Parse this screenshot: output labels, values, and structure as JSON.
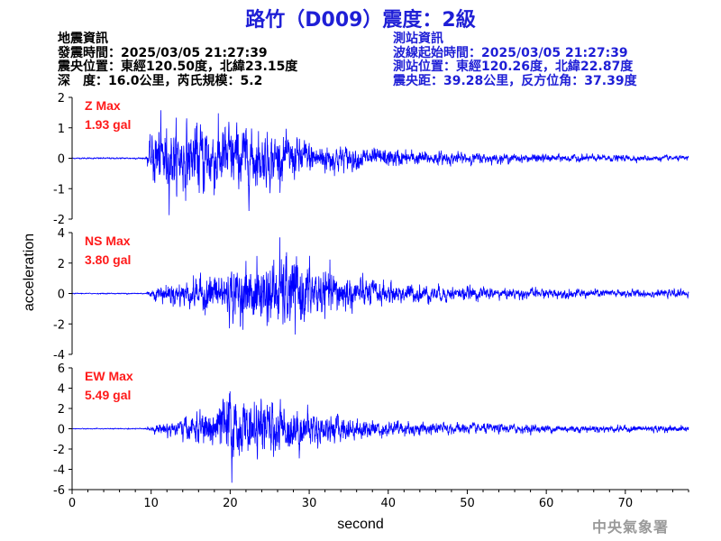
{
  "title": "路竹（D009）震度：2級",
  "earthquake_info": {
    "heading": "地震資訊",
    "time": "發震時間：2025/03/05 21:27:39",
    "location": "震央位置：東經120.50度，北緯23.15度",
    "depth_magnitude": "深　度：16.0公里，芮氏規模：5.2"
  },
  "station_info": {
    "heading": "測站資訊",
    "wave_start": "波線起始時間：2025/03/05 21:27:39",
    "location": "測站位置：東經120.26度，北緯22.87度",
    "distance": "震央距：39.28公里，反方位角：37.39度"
  },
  "footer": "中央氣象署",
  "colors": {
    "trace": "#0000ff",
    "label": "#ff1a1a",
    "title": "#1f1fd6"
  },
  "chart_data": [
    {
      "type": "line",
      "component": "Z",
      "max_label": "Z Max",
      "max_value": "1.93 gal",
      "peak": 1.93,
      "ylim": [
        -2,
        2
      ],
      "yticks": [
        -2,
        -1,
        0,
        1,
        2
      ],
      "xlim": [
        0,
        78
      ],
      "p_onset": 9.5,
      "envelope": [
        [
          0,
          0.03
        ],
        [
          9.3,
          0.04
        ],
        [
          10.5,
          1.8
        ],
        [
          13,
          1.6
        ],
        [
          17,
          1.9
        ],
        [
          22,
          1.6
        ],
        [
          26,
          1.2
        ],
        [
          30,
          0.9
        ],
        [
          36,
          0.55
        ],
        [
          45,
          0.35
        ],
        [
          55,
          0.22
        ],
        [
          65,
          0.18
        ],
        [
          78,
          0.12
        ]
      ]
    },
    {
      "type": "line",
      "component": "NS",
      "max_label": "NS Max",
      "max_value": "3.80 gal",
      "peak": 3.8,
      "ylim": [
        -4,
        4
      ],
      "yticks": [
        -4,
        -2,
        0,
        2,
        4
      ],
      "xlim": [
        0,
        78
      ],
      "p_onset": 9.5,
      "envelope": [
        [
          0,
          0.04
        ],
        [
          9.3,
          0.06
        ],
        [
          11,
          0.9
        ],
        [
          15,
          1.4
        ],
        [
          18,
          2.2
        ],
        [
          22,
          2.8
        ],
        [
          26,
          3.6
        ],
        [
          28,
          3.8
        ],
        [
          31,
          2.6
        ],
        [
          35,
          1.8
        ],
        [
          40,
          1.1
        ],
        [
          47,
          0.8
        ],
        [
          55,
          0.55
        ],
        [
          65,
          0.45
        ],
        [
          78,
          0.35
        ]
      ]
    },
    {
      "type": "line",
      "component": "EW",
      "max_label": "EW Max",
      "max_value": "5.49 gal",
      "peak": 5.49,
      "ylim": [
        -6,
        6
      ],
      "yticks": [
        -6,
        -4,
        -2,
        0,
        2,
        4,
        6
      ],
      "xlim": [
        0,
        78
      ],
      "p_onset": 9.5,
      "envelope": [
        [
          0,
          0.05
        ],
        [
          9.3,
          0.08
        ],
        [
          11,
          0.8
        ],
        [
          14,
          1.6
        ],
        [
          17,
          2.8
        ],
        [
          20,
          5.4
        ],
        [
          22,
          3.8
        ],
        [
          26,
          3.9
        ],
        [
          28,
          3.6
        ],
        [
          31,
          2.4
        ],
        [
          35,
          1.8
        ],
        [
          40,
          1.2
        ],
        [
          47,
          0.9
        ],
        [
          55,
          0.7
        ],
        [
          65,
          0.55
        ],
        [
          78,
          0.45
        ]
      ]
    }
  ],
  "axes": {
    "xlabel": "second",
    "ylabel": "acceleration",
    "xticks": [
      0,
      10,
      20,
      30,
      40,
      50,
      60,
      70
    ]
  }
}
